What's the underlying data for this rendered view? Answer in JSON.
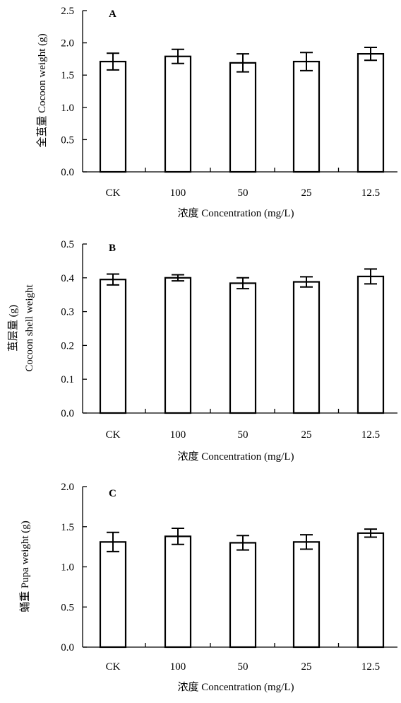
{
  "chart_data": [
    {
      "type": "bar",
      "panel_label": "A",
      "categories": [
        "CK",
        "100",
        "50",
        "25",
        "12.5"
      ],
      "values": [
        1.71,
        1.79,
        1.69,
        1.71,
        1.83
      ],
      "errors": [
        0.13,
        0.11,
        0.14,
        0.14,
        0.1
      ],
      "ylim": [
        0,
        2.5
      ],
      "yticks": [
        "0.0",
        "0.5",
        "1.0",
        "1.5",
        "2.0",
        "2.5"
      ],
      "ylabel": "全茧量 Cocoon weight (g)",
      "xlabel": "浓度  Concentration (mg/L)",
      "grid": false
    },
    {
      "type": "bar",
      "panel_label": "B",
      "categories": [
        "CK",
        "100",
        "50",
        "25",
        "12.5"
      ],
      "values": [
        0.395,
        0.4,
        0.384,
        0.388,
        0.404
      ],
      "errors": [
        0.016,
        0.009,
        0.016,
        0.015,
        0.022
      ],
      "ylim": [
        0,
        0.5
      ],
      "yticks": [
        "0.0",
        "0.1",
        "0.2",
        "0.3",
        "0.4",
        "0.5"
      ],
      "ylabel_line1": "茧层量 (g)",
      "ylabel_line2": "Cocoon shell weight",
      "xlabel": "浓度  Concentration (mg/L)",
      "grid": false
    },
    {
      "type": "bar",
      "panel_label": "C",
      "categories": [
        "CK",
        "100",
        "50",
        "25",
        "12.5"
      ],
      "values": [
        1.31,
        1.38,
        1.3,
        1.31,
        1.42
      ],
      "errors": [
        0.12,
        0.1,
        0.09,
        0.09,
        0.05
      ],
      "ylim": [
        0,
        2.0
      ],
      "yticks": [
        "0.0",
        "0.5",
        "1.0",
        "1.5",
        "2.0"
      ],
      "ylabel": "蛹重 Pupa weight (g)",
      "xlabel": "浓度  Concentration (mg/L)",
      "grid": false
    }
  ]
}
